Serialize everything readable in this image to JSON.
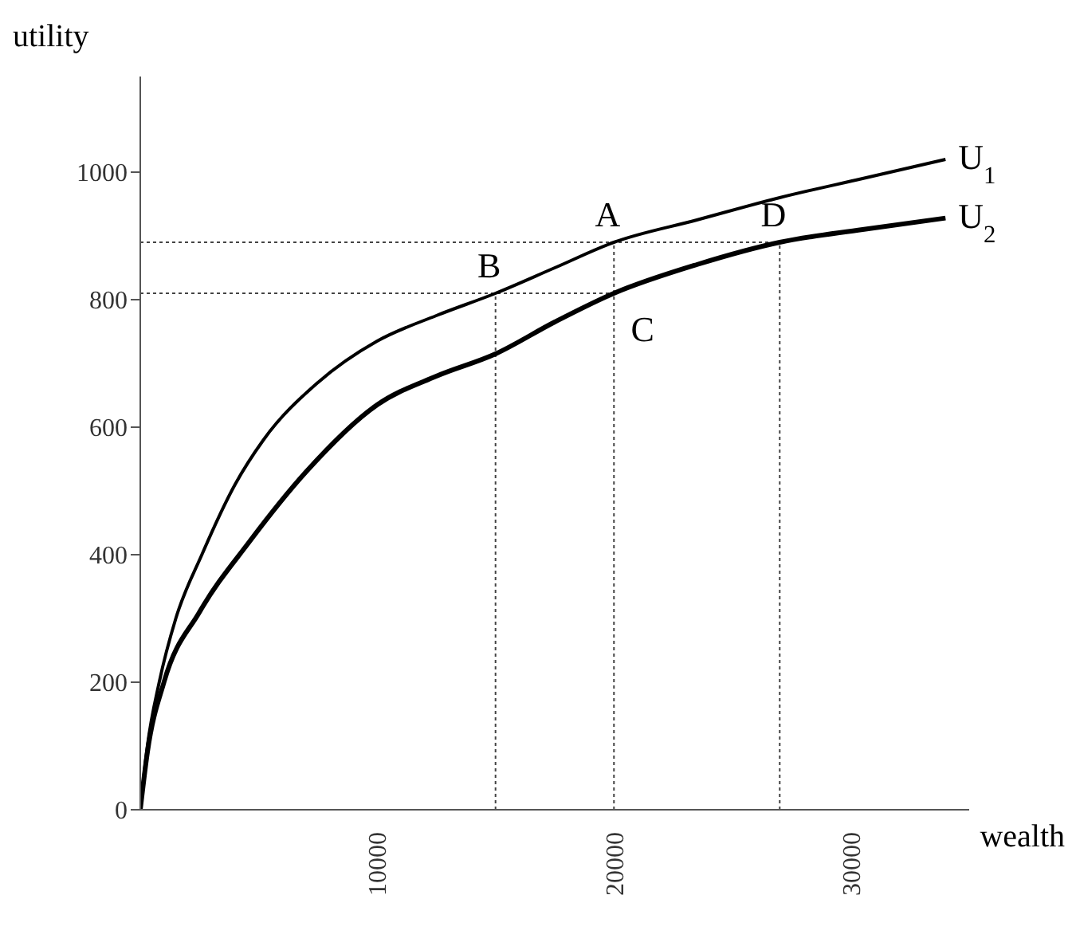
{
  "chart_data": {
    "type": "line",
    "xlabel": "wealth",
    "ylabel": "utility",
    "xlim": [
      0,
      35000
    ],
    "ylim": [
      0,
      1150
    ],
    "xticks": [
      10000,
      20000,
      30000
    ],
    "yticks": [
      0,
      200,
      400,
      600,
      800,
      1000
    ],
    "series": [
      {
        "name": "U$_{1}$",
        "color": "#000000",
        "x": [
          0,
          300,
          800,
          1500,
          2600,
          4000,
          5200,
          7500,
          10000,
          12500,
          15000,
          17500,
          20000,
          23500,
          27000,
          30500,
          34000
        ],
        "values": [
          0,
          100,
          200,
          300,
          400,
          510,
          580,
          670,
          735,
          775,
          810,
          850,
          890,
          925,
          960,
          990,
          1020
        ]
      },
      {
        "name": "U$_{2}$",
        "color": "#000000",
        "x": [
          0,
          300,
          1000,
          2500,
          4600,
          7000,
          10000,
          12500,
          15000,
          17500,
          20000,
          23500,
          27000,
          30500,
          34000
        ],
        "values": [
          0,
          90,
          200,
          310,
          420,
          530,
          635,
          680,
          715,
          765,
          810,
          855,
          890,
          910,
          928
        ]
      }
    ],
    "annotations": [
      {
        "text": "A",
        "x": 20000,
        "y": 890
      },
      {
        "text": "B",
        "x": 15000,
        "y": 810
      },
      {
        "text": "C",
        "x": 20000,
        "y": 810
      },
      {
        "text": "D",
        "x": 27000,
        "y": 890
      }
    ],
    "ref_lines": [
      {
        "axis": "y",
        "value": 890,
        "line_style": "dotted"
      },
      {
        "axis": "y",
        "value": 810,
        "line_style": "dotted"
      },
      {
        "axis": "x",
        "value": 15000,
        "line_style": "dotted"
      },
      {
        "axis": "x",
        "value": 20000,
        "line_style": "dotted"
      },
      {
        "axis": "x",
        "value": 27000,
        "line_style": "dotted"
      }
    ],
    "grid": false,
    "legend": false,
    "marker": "none",
    "line_style": "solid"
  }
}
